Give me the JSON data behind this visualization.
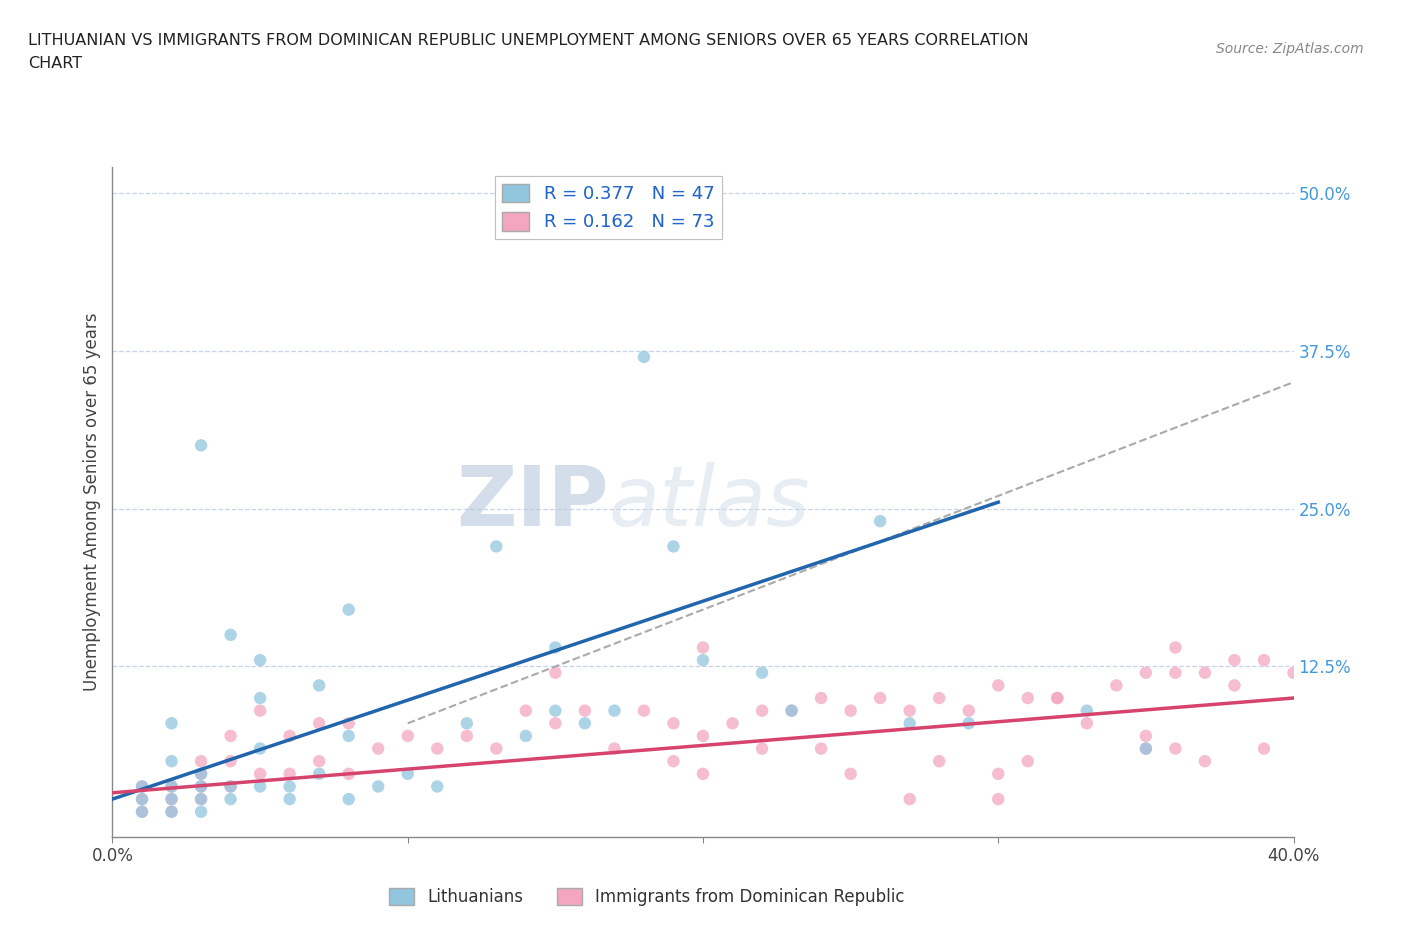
{
  "title_line1": "LITHUANIAN VS IMMIGRANTS FROM DOMINICAN REPUBLIC UNEMPLOYMENT AMONG SENIORS OVER 65 YEARS CORRELATION",
  "title_line2": "CHART",
  "source": "Source: ZipAtlas.com",
  "ylabel": "Unemployment Among Seniors over 65 years",
  "xlim": [
    0.0,
    0.4
  ],
  "ylim": [
    -0.01,
    0.52
  ],
  "x_ticks": [
    0.0,
    0.1,
    0.2,
    0.3,
    0.4
  ],
  "x_tick_labels": [
    "0.0%",
    "",
    "",
    "",
    "40.0%"
  ],
  "y_tick_labels_right": [
    "50.0%",
    "37.5%",
    "25.0%",
    "12.5%",
    ""
  ],
  "y_ticks_right": [
    0.5,
    0.375,
    0.25,
    0.125,
    0.0
  ],
  "legend1_label": "R = 0.377   N = 47",
  "legend2_label": "R = 0.162   N = 73",
  "blue_scatter_color": "#92c5de",
  "pink_scatter_color": "#f4a6c0",
  "blue_line_color": "#2166ac",
  "pink_line_color": "#d6446e",
  "grey_line_color": "#aaaaaa",
  "grid_color": "#c8d4e8",
  "watermark_color": "#cdd8e8",
  "lit_N": 47,
  "dom_N": 73,
  "blue_line_x0": 0.0,
  "blue_line_y0": 0.02,
  "blue_line_x1": 0.3,
  "blue_line_y1": 0.255,
  "pink_line_x0": 0.0,
  "pink_line_y0": 0.025,
  "pink_line_x1": 0.4,
  "pink_line_y1": 0.1,
  "grey_line_x0": 0.1,
  "grey_line_y0": 0.08,
  "grey_line_x1": 0.4,
  "grey_line_y1": 0.35,
  "lit_x": [
    0.01,
    0.01,
    0.01,
    0.02,
    0.02,
    0.02,
    0.02,
    0.02,
    0.03,
    0.03,
    0.03,
    0.03,
    0.04,
    0.04,
    0.04,
    0.05,
    0.05,
    0.05,
    0.05,
    0.06,
    0.06,
    0.07,
    0.07,
    0.08,
    0.08,
    0.09,
    0.1,
    0.11,
    0.12,
    0.13,
    0.14,
    0.15,
    0.16,
    0.17,
    0.18,
    0.19,
    0.2,
    0.22,
    0.23,
    0.26,
    0.27,
    0.29,
    0.33,
    0.35,
    0.03,
    0.08,
    0.15
  ],
  "lit_y": [
    0.01,
    0.02,
    0.03,
    0.01,
    0.02,
    0.03,
    0.05,
    0.08,
    0.01,
    0.02,
    0.03,
    0.04,
    0.02,
    0.03,
    0.15,
    0.03,
    0.06,
    0.1,
    0.13,
    0.02,
    0.03,
    0.04,
    0.11,
    0.02,
    0.07,
    0.03,
    0.04,
    0.03,
    0.08,
    0.22,
    0.07,
    0.09,
    0.08,
    0.09,
    0.37,
    0.22,
    0.13,
    0.12,
    0.09,
    0.24,
    0.08,
    0.08,
    0.09,
    0.06,
    0.3,
    0.17,
    0.14
  ],
  "dom_x": [
    0.01,
    0.01,
    0.01,
    0.02,
    0.02,
    0.02,
    0.03,
    0.03,
    0.03,
    0.03,
    0.04,
    0.04,
    0.04,
    0.05,
    0.05,
    0.06,
    0.06,
    0.07,
    0.07,
    0.08,
    0.08,
    0.09,
    0.1,
    0.11,
    0.12,
    0.13,
    0.14,
    0.15,
    0.16,
    0.17,
    0.18,
    0.19,
    0.2,
    0.21,
    0.22,
    0.23,
    0.24,
    0.24,
    0.25,
    0.25,
    0.26,
    0.27,
    0.27,
    0.28,
    0.29,
    0.3,
    0.31,
    0.31,
    0.32,
    0.33,
    0.34,
    0.35,
    0.35,
    0.36,
    0.36,
    0.37,
    0.37,
    0.38,
    0.39,
    0.39,
    0.19,
    0.22,
    0.15,
    0.2,
    0.28,
    0.3,
    0.32,
    0.36,
    0.38,
    0.2,
    0.3,
    0.35,
    0.4
  ],
  "dom_y": [
    0.01,
    0.02,
    0.03,
    0.01,
    0.02,
    0.03,
    0.02,
    0.03,
    0.04,
    0.05,
    0.03,
    0.05,
    0.07,
    0.04,
    0.09,
    0.04,
    0.07,
    0.05,
    0.08,
    0.04,
    0.08,
    0.06,
    0.07,
    0.06,
    0.07,
    0.06,
    0.09,
    0.08,
    0.09,
    0.06,
    0.09,
    0.08,
    0.07,
    0.08,
    0.09,
    0.09,
    0.1,
    0.06,
    0.09,
    0.04,
    0.1,
    0.09,
    0.02,
    0.1,
    0.09,
    0.11,
    0.1,
    0.05,
    0.1,
    0.08,
    0.11,
    0.12,
    0.06,
    0.12,
    0.06,
    0.12,
    0.05,
    0.13,
    0.13,
    0.06,
    0.05,
    0.06,
    0.12,
    0.14,
    0.05,
    0.04,
    0.1,
    0.14,
    0.11,
    0.04,
    0.02,
    0.07,
    0.12
  ]
}
